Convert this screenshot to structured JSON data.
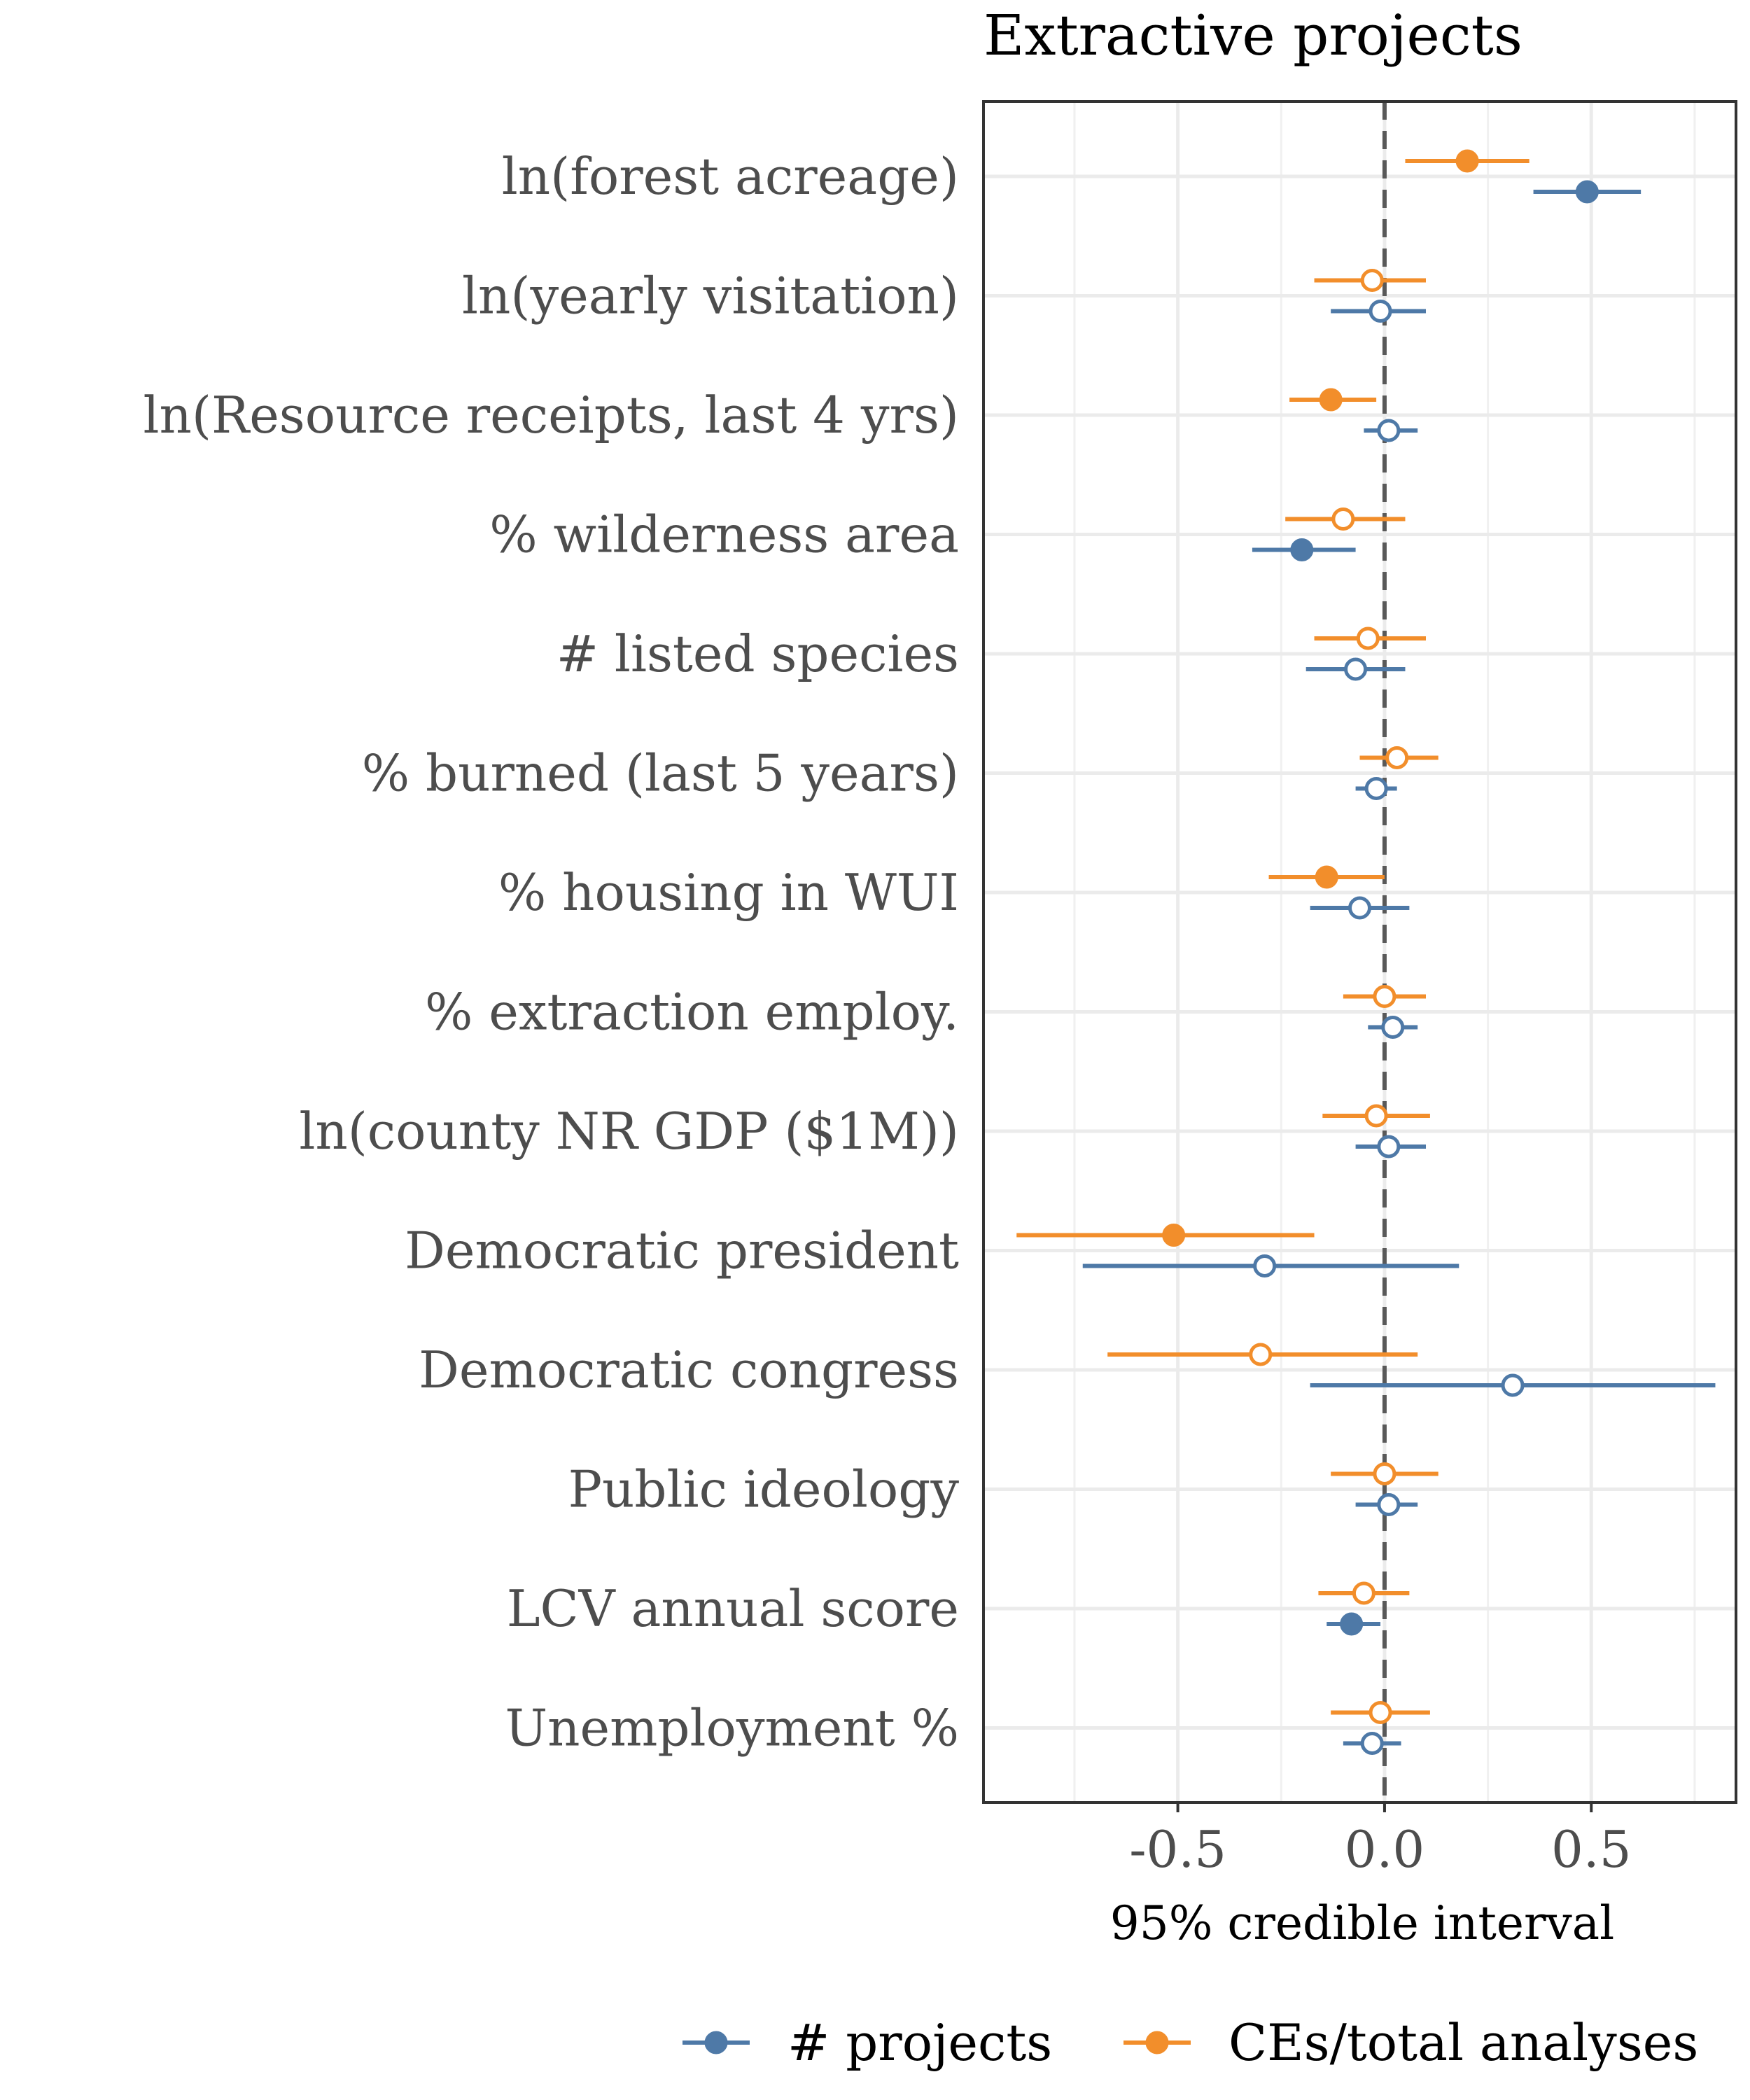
{
  "chart_data": {
    "type": "forest",
    "title": "Extractive projects",
    "xlabel": "95% credible interval",
    "xlim": [
      -0.97,
      0.85
    ],
    "xticks": [
      -0.5,
      0.0,
      0.5
    ],
    "xtick_labels": [
      "-0.5",
      "0.0",
      "0.5"
    ],
    "reference_line": 0.0,
    "grid": true,
    "legend_position": "bottom",
    "colors": {
      "# projects": "#4e79a7",
      "CEs/total analyses": "#f28e2b"
    },
    "categories": [
      "ln(forest acreage)",
      "ln(yearly visitation)",
      "ln(Resource receipts, last 4 yrs)",
      "% wilderness area",
      "# listed species",
      "% burned (last 5 years)",
      "% housing in WUI",
      "% extraction employ.",
      "ln(county NR GDP ($1M))",
      "Democratic president",
      "Democratic congress",
      "Public ideology",
      "LCV annual score",
      "Unemployment %"
    ],
    "series": [
      {
        "name": "# projects",
        "color": "#4e79a7",
        "estimate": [
          0.49,
          -0.01,
          0.01,
          -0.2,
          -0.07,
          -0.02,
          -0.06,
          0.02,
          0.01,
          -0.29,
          0.31,
          0.01,
          -0.08,
          -0.03
        ],
        "lower": [
          0.36,
          -0.13,
          -0.05,
          -0.32,
          -0.19,
          -0.07,
          -0.18,
          -0.04,
          -0.07,
          -0.73,
          -0.18,
          -0.07,
          -0.14,
          -0.1
        ],
        "upper": [
          0.62,
          0.1,
          0.08,
          -0.07,
          0.05,
          0.03,
          0.06,
          0.08,
          0.1,
          0.18,
          0.8,
          0.08,
          -0.01,
          0.04
        ],
        "filled": [
          true,
          false,
          false,
          true,
          false,
          false,
          false,
          false,
          false,
          false,
          false,
          false,
          true,
          false
        ]
      },
      {
        "name": "CEs/total analyses",
        "color": "#f28e2b",
        "estimate": [
          0.2,
          -0.03,
          -0.13,
          -0.1,
          -0.04,
          0.03,
          -0.14,
          0.0,
          -0.02,
          -0.51,
          -0.3,
          0.0,
          -0.05,
          -0.01
        ],
        "lower": [
          0.05,
          -0.17,
          -0.23,
          -0.24,
          -0.17,
          -0.06,
          -0.28,
          -0.1,
          -0.15,
          -0.89,
          -0.67,
          -0.13,
          -0.16,
          -0.13
        ],
        "upper": [
          0.35,
          0.1,
          -0.02,
          0.05,
          0.1,
          0.13,
          0.0,
          0.1,
          0.11,
          -0.17,
          0.08,
          0.13,
          0.06,
          0.11
        ],
        "filled": [
          true,
          false,
          true,
          false,
          false,
          false,
          true,
          false,
          false,
          true,
          false,
          false,
          false,
          false
        ]
      }
    ]
  }
}
